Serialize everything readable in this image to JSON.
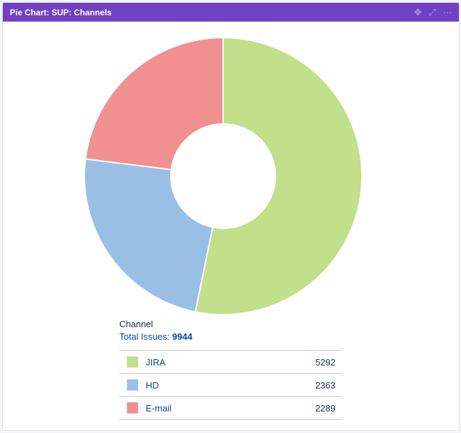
{
  "panel": {
    "title": "Pie Chart: SUP: Channels",
    "icons": [
      "move-icon",
      "expand-icon",
      "more-icon"
    ]
  },
  "chart_data": {
    "type": "pie",
    "donut": true,
    "title": "Channel",
    "total_label": "Total Issues:",
    "total": "9944",
    "categories": [
      "JIRA",
      "HD",
      "E-mail"
    ],
    "values": [
      5292,
      2363,
      2289
    ],
    "colors": [
      "#c2df89",
      "#99bfe5",
      "#f09090"
    ]
  }
}
